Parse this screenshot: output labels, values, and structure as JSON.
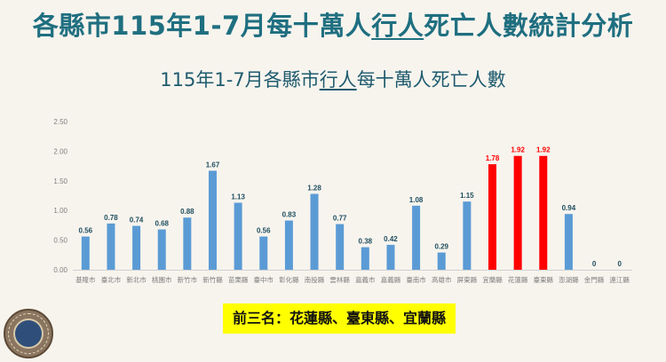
{
  "title": {
    "part1": "各縣市115年1-7月每十萬人",
    "highlight": "行人",
    "part2": "死亡人數統計分析"
  },
  "subtitle": {
    "part1": "115年1-7月各縣市",
    "highlight": "行人",
    "part2": "每十萬人死亡人數"
  },
  "badge": "前三名：花蓮縣、臺東縣、宜蘭縣",
  "chart_data": {
    "type": "bar",
    "title": "115年1-7月各縣市行人每十萬人死亡人數",
    "categories": [
      "基隆市",
      "臺北市",
      "新北市",
      "桃園市",
      "新竹市",
      "新竹縣",
      "苗栗縣",
      "臺中市",
      "彰化縣",
      "南投縣",
      "雲林縣",
      "嘉義市",
      "嘉義縣",
      "臺南市",
      "高雄市",
      "屏東縣",
      "宜蘭縣",
      "花蓮縣",
      "臺東縣",
      "澎湖縣",
      "金門縣",
      "連江縣"
    ],
    "values": [
      0.56,
      0.78,
      0.74,
      0.68,
      0.88,
      1.67,
      1.13,
      0.56,
      0.83,
      1.28,
      0.77,
      0.38,
      0.42,
      1.08,
      0.29,
      1.15,
      1.78,
      1.92,
      1.92,
      0.94,
      0,
      0
    ],
    "value_labels": [
      "0.56",
      "0.78",
      "0.74",
      "0.68",
      "0.88",
      "1.67",
      "1.13",
      "0.56",
      "0.83",
      "1.28",
      "0.77",
      "0.38",
      "0.42",
      "1.08",
      "0.29",
      "1.15",
      "1.78",
      "1.92",
      "1.92",
      "0.94",
      "0",
      "0"
    ],
    "highlight": [
      false,
      false,
      false,
      false,
      false,
      false,
      false,
      false,
      false,
      false,
      false,
      false,
      false,
      false,
      false,
      false,
      true,
      true,
      true,
      false,
      false,
      false
    ],
    "ylim": [
      0,
      2.5
    ],
    "yticks": [
      "0.00",
      "0.50",
      "1.00",
      "1.50",
      "2.00",
      "2.50"
    ],
    "xlabel": "",
    "ylabel": "",
    "grid": false,
    "colors": {
      "normal": "#5b9bd5",
      "highlight": "#ff0000",
      "label_normal": "#1f4e5f",
      "label_highlight": "#ff0000",
      "axis": "#d0d0d0",
      "tick_label": "#7f7f7f"
    }
  }
}
